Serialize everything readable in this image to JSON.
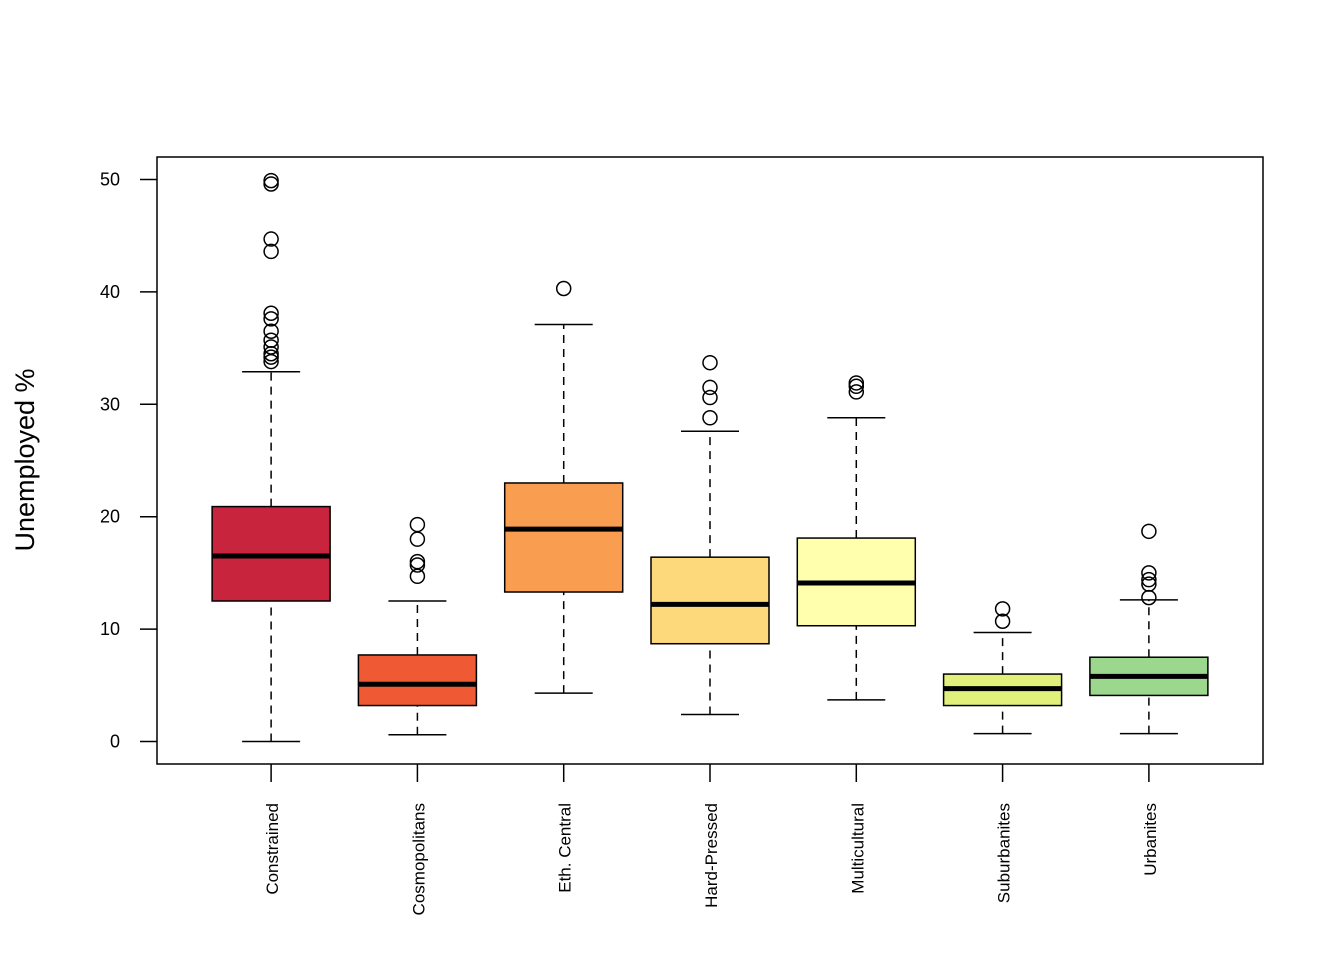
{
  "chart_data": {
    "type": "boxplot",
    "y_label": "Unemployed %",
    "categories": [
      "Constrained",
      "Cosmopolitans",
      "Eth. Central",
      "Hard-Pressed",
      "Multicultural",
      "Suburbanites",
      "Urbanites"
    ],
    "colors": [
      "#c8243e",
      "#ef5934",
      "#f99d50",
      "#fdd97c",
      "#ffffad",
      "#e0f07a",
      "#9bd88e"
    ],
    "boxes": [
      {
        "low": 0,
        "q1": 12.5,
        "median": 16.5,
        "q3": 20.9,
        "high": 32.9,
        "outliers": [
          49.9,
          49.6,
          44.7,
          43.6,
          38.1,
          37.6,
          36.5,
          35.7,
          35.1,
          34.5,
          34.2,
          33.8
        ]
      },
      {
        "low": 0.6,
        "q1": 3.2,
        "median": 5.1,
        "q3": 7.7,
        "high": 12.5,
        "outliers": [
          19.3,
          18.0,
          16.0,
          15.7,
          14.7
        ]
      },
      {
        "low": 4.3,
        "q1": 13.3,
        "median": 18.9,
        "q3": 23.0,
        "high": 37.1,
        "outliers": [
          40.3
        ]
      },
      {
        "low": 2.4,
        "q1": 8.7,
        "median": 12.2,
        "q3": 16.4,
        "high": 27.6,
        "outliers": [
          33.7,
          31.5,
          30.6,
          28.8
        ]
      },
      {
        "low": 3.7,
        "q1": 10.3,
        "median": 14.1,
        "q3": 18.1,
        "high": 28.8,
        "outliers": [
          31.9,
          31.6,
          31.1
        ]
      },
      {
        "low": 0.7,
        "q1": 3.2,
        "median": 4.7,
        "q3": 6.0,
        "high": 9.7,
        "outliers": [
          11.8,
          10.7
        ]
      },
      {
        "low": 0.7,
        "q1": 4.1,
        "median": 5.8,
        "q3": 7.5,
        "high": 12.6,
        "outliers": [
          18.7,
          15.0,
          14.4,
          14.0,
          12.8
        ]
      }
    ],
    "ylim": [
      -2,
      52
    ],
    "yticks": [
      0,
      10,
      20,
      30,
      40,
      50
    ]
  }
}
